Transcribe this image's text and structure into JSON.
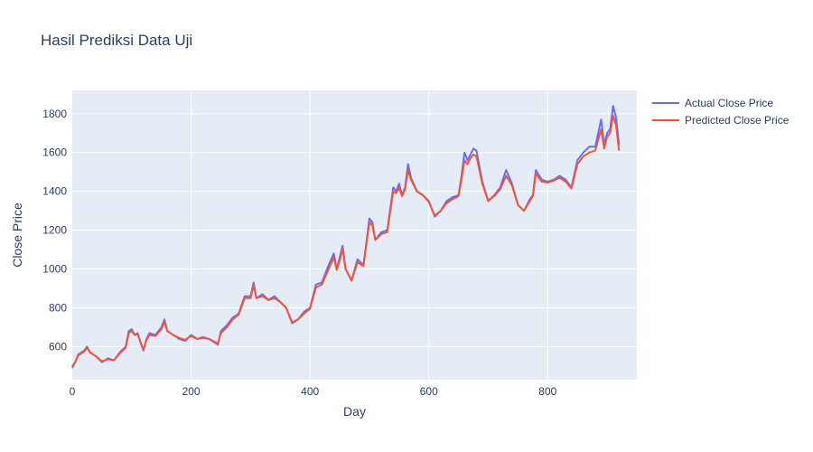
{
  "chart_data": {
    "type": "line",
    "title": "Hasil Prediksi Data Uji",
    "xlabel": "Day",
    "ylabel": "Close Price",
    "xlim": [
      0,
      950
    ],
    "ylim": [
      430,
      1920
    ],
    "x_ticks": [
      0,
      200,
      400,
      600,
      800
    ],
    "y_ticks": [
      600,
      800,
      1000,
      1200,
      1400,
      1600,
      1800
    ],
    "grid": true,
    "legend_position": "top-right",
    "plot_background": "#e5ecf6",
    "series": [
      {
        "name": "Actual Close Price",
        "color": "#636efa",
        "x": [
          0,
          5,
          10,
          15,
          20,
          25,
          30,
          40,
          50,
          60,
          70,
          80,
          90,
          95,
          100,
          105,
          110,
          115,
          120,
          125,
          130,
          140,
          150,
          155,
          160,
          170,
          180,
          190,
          200,
          210,
          220,
          230,
          240,
          245,
          250,
          260,
          270,
          280,
          290,
          300,
          305,
          310,
          320,
          330,
          340,
          350,
          360,
          370,
          380,
          390,
          400,
          410,
          420,
          430,
          440,
          445,
          450,
          455,
          460,
          470,
          480,
          490,
          500,
          505,
          510,
          520,
          530,
          540,
          545,
          550,
          555,
          560,
          565,
          570,
          580,
          590,
          600,
          610,
          620,
          630,
          640,
          650,
          655,
          660,
          665,
          670,
          675,
          680,
          690,
          700,
          710,
          720,
          730,
          740,
          750,
          760,
          770,
          775,
          780,
          790,
          800,
          810,
          820,
          830,
          840,
          850,
          860,
          870,
          880,
          890,
          895,
          900,
          905,
          910,
          915,
          920
        ],
        "y": [
          490,
          520,
          560,
          570,
          580,
          600,
          570,
          550,
          520,
          540,
          530,
          570,
          600,
          680,
          690,
          660,
          670,
          620,
          580,
          640,
          670,
          660,
          700,
          740,
          680,
          660,
          640,
          630,
          660,
          640,
          650,
          640,
          620,
          610,
          680,
          710,
          750,
          770,
          860,
          860,
          930,
          850,
          870,
          840,
          860,
          830,
          800,
          720,
          740,
          780,
          800,
          920,
          930,
          1010,
          1080,
          1000,
          1060,
          1120,
          1000,
          940,
          1050,
          1020,
          1260,
          1240,
          1150,
          1190,
          1200,
          1420,
          1400,
          1440,
          1380,
          1420,
          1540,
          1470,
          1400,
          1380,
          1350,
          1270,
          1300,
          1350,
          1370,
          1380,
          1480,
          1600,
          1560,
          1590,
          1620,
          1610,
          1450,
          1350,
          1380,
          1420,
          1510,
          1440,
          1330,
          1300,
          1360,
          1380,
          1510,
          1460,
          1450,
          1460,
          1480,
          1460,
          1420,
          1560,
          1600,
          1630,
          1630,
          1770,
          1640,
          1700,
          1720,
          1840,
          1780,
          1640
        ]
      },
      {
        "name": "Predicted Close Price",
        "color": "#ef553b",
        "x": [
          0,
          5,
          10,
          15,
          20,
          25,
          30,
          40,
          50,
          60,
          70,
          80,
          90,
          95,
          100,
          105,
          110,
          115,
          120,
          125,
          130,
          140,
          150,
          155,
          160,
          170,
          180,
          190,
          200,
          210,
          220,
          230,
          240,
          245,
          250,
          260,
          270,
          280,
          290,
          300,
          305,
          310,
          320,
          330,
          340,
          350,
          360,
          370,
          380,
          390,
          400,
          410,
          420,
          430,
          440,
          445,
          450,
          455,
          460,
          470,
          480,
          490,
          500,
          505,
          510,
          520,
          530,
          540,
          545,
          550,
          555,
          560,
          565,
          570,
          580,
          590,
          600,
          610,
          620,
          630,
          640,
          650,
          655,
          660,
          665,
          670,
          675,
          680,
          690,
          700,
          710,
          720,
          730,
          740,
          750,
          760,
          770,
          775,
          780,
          790,
          800,
          810,
          820,
          830,
          840,
          850,
          860,
          870,
          880,
          890,
          895,
          900,
          905,
          910,
          915,
          920
        ],
        "y": [
          500,
          520,
          555,
          565,
          575,
          595,
          570,
          550,
          525,
          535,
          530,
          565,
          595,
          670,
          680,
          660,
          665,
          620,
          585,
          635,
          660,
          655,
          690,
          730,
          680,
          660,
          645,
          635,
          655,
          640,
          645,
          640,
          625,
          615,
          670,
          700,
          740,
          765,
          850,
          850,
          915,
          850,
          860,
          840,
          850,
          830,
          800,
          725,
          740,
          770,
          795,
          905,
          920,
          990,
          1060,
          995,
          1045,
          1105,
          1000,
          940,
          1035,
          1015,
          1240,
          1225,
          1150,
          1180,
          1190,
          1400,
          1390,
          1420,
          1375,
          1410,
          1510,
          1460,
          1400,
          1380,
          1345,
          1275,
          1300,
          1340,
          1360,
          1375,
          1460,
          1560,
          1540,
          1570,
          1590,
          1580,
          1440,
          1350,
          1375,
          1410,
          1480,
          1430,
          1330,
          1300,
          1350,
          1375,
          1490,
          1450,
          1445,
          1455,
          1470,
          1450,
          1415,
          1540,
          1580,
          1600,
          1610,
          1720,
          1620,
          1680,
          1700,
          1790,
          1740,
          1610
        ]
      }
    ]
  }
}
